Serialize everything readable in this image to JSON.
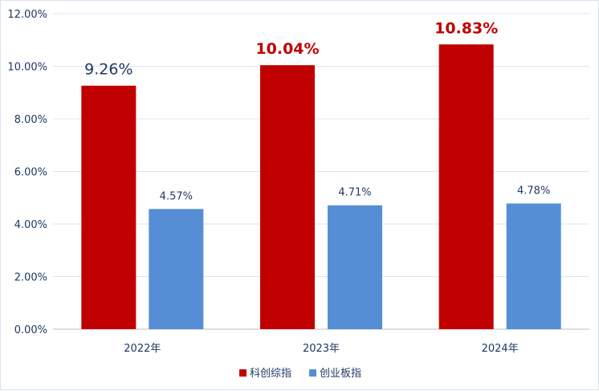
{
  "chart_data": {
    "type": "bar",
    "categories": [
      "2022年",
      "2023年",
      "2024年"
    ],
    "series": [
      {
        "name": "科创综指",
        "values": [
          9.26,
          10.04,
          10.83
        ],
        "labels": [
          "9.26%",
          "10.04%",
          "10.83%"
        ],
        "color": "#c00000",
        "label_colors": [
          "#1f3864",
          "#c00000",
          "#c00000"
        ]
      },
      {
        "name": "创业板指",
        "values": [
          4.57,
          4.71,
          4.78
        ],
        "labels": [
          "4.57%",
          "4.71%",
          "4.78%"
        ],
        "color": "#558ed5",
        "label_color": "#1f3864"
      }
    ],
    "y_ticks": [
      "0.00%",
      "2.00%",
      "4.00%",
      "6.00%",
      "8.00%",
      "10.00%",
      "12.00%"
    ],
    "ylim": [
      0,
      12
    ],
    "grid": true,
    "legend_position": "bottom",
    "title": "",
    "xlabel": "",
    "ylabel": ""
  }
}
